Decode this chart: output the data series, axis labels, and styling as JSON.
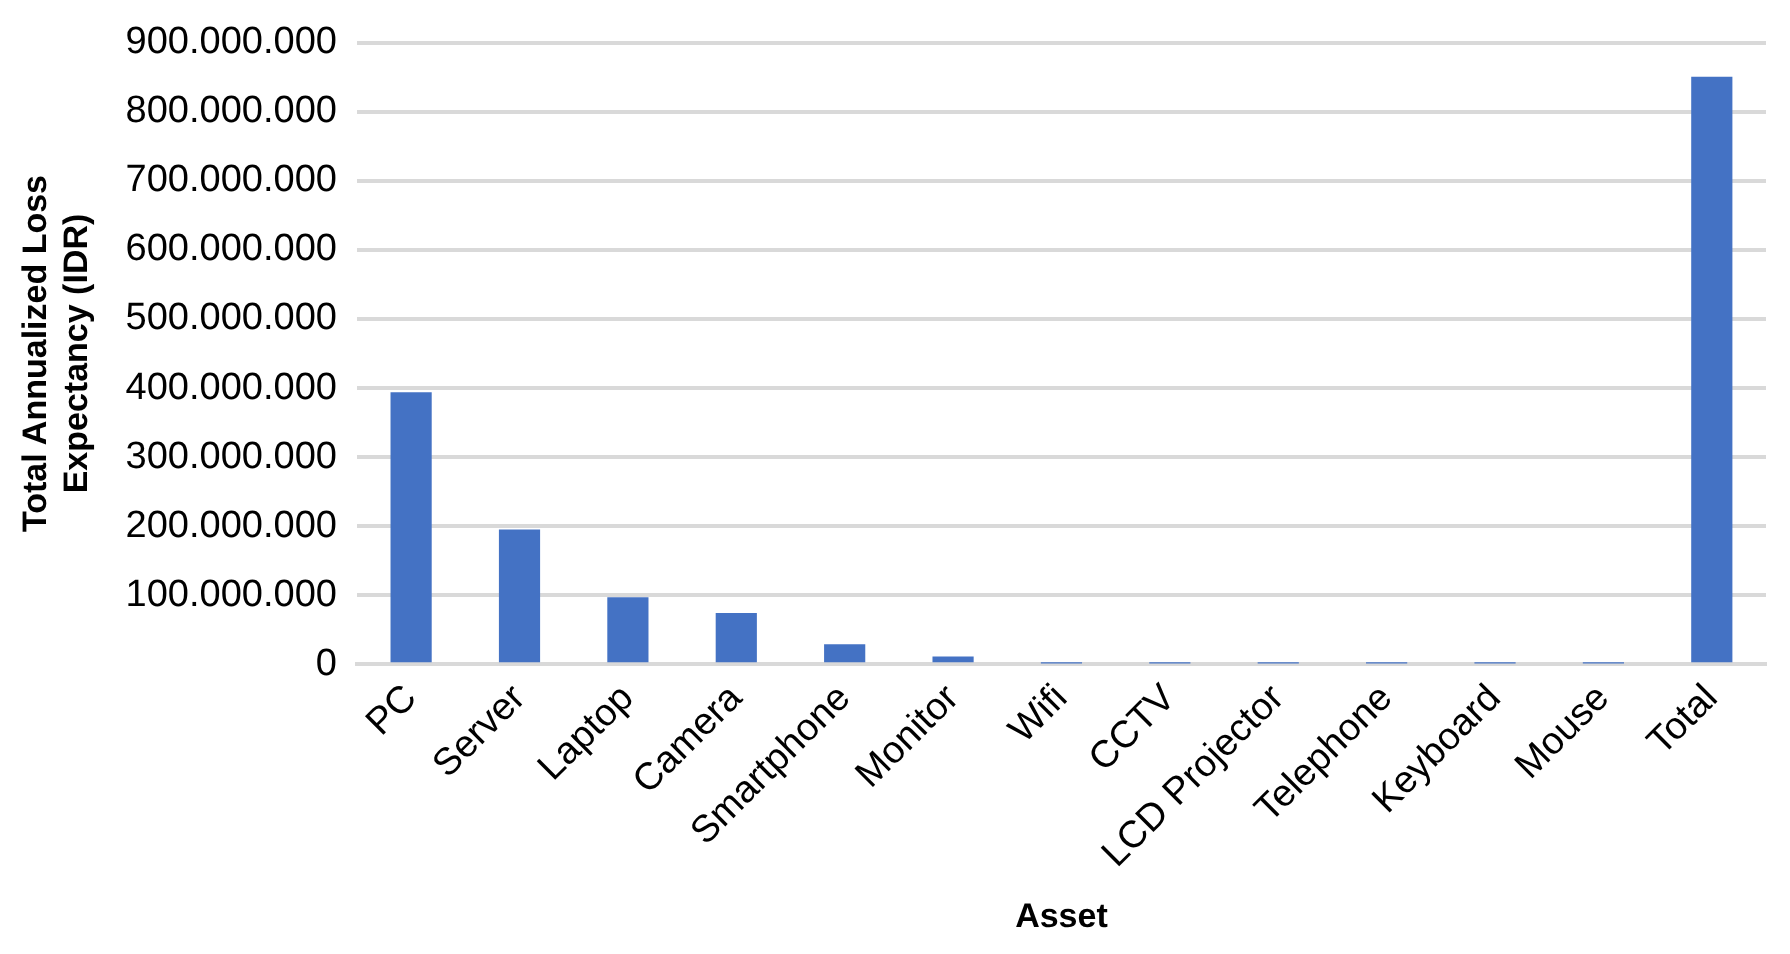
{
  "chart_data": {
    "type": "bar",
    "xlabel": "Asset",
    "ylabel": "Total Annualized Loss Expectancy (IDR)",
    "categories": [
      "PC",
      "Server",
      "Laptop",
      "Camera",
      "Smartphone",
      "Monitor",
      "Wifi",
      "CCTV",
      "LCD Projector",
      "Telephone",
      "Keyboard",
      "Mouse",
      "Total"
    ],
    "values": [
      394000000,
      195000000,
      97000000,
      74000000,
      29000000,
      11000000,
      1000000,
      1000000,
      1000000,
      1000000,
      1000000,
      1000000,
      851000000
    ],
    "color": "#4472c4",
    "ylim": [
      0,
      900000000
    ],
    "yticks": [
      {
        "value": 0,
        "label": "0"
      },
      {
        "value": 100000000,
        "label": "100.000.000"
      },
      {
        "value": 200000000,
        "label": "200.000.000"
      },
      {
        "value": 300000000,
        "label": "300.000.000"
      },
      {
        "value": 400000000,
        "label": "400.000.000"
      },
      {
        "value": 500000000,
        "label": "500.000.000"
      },
      {
        "value": 600000000,
        "label": "600.000.000"
      },
      {
        "value": 700000000,
        "label": "700.000.000"
      },
      {
        "value": 800000000,
        "label": "800.000.000"
      },
      {
        "value": 900000000,
        "label": "900.000.000"
      }
    ],
    "grid": "y"
  }
}
